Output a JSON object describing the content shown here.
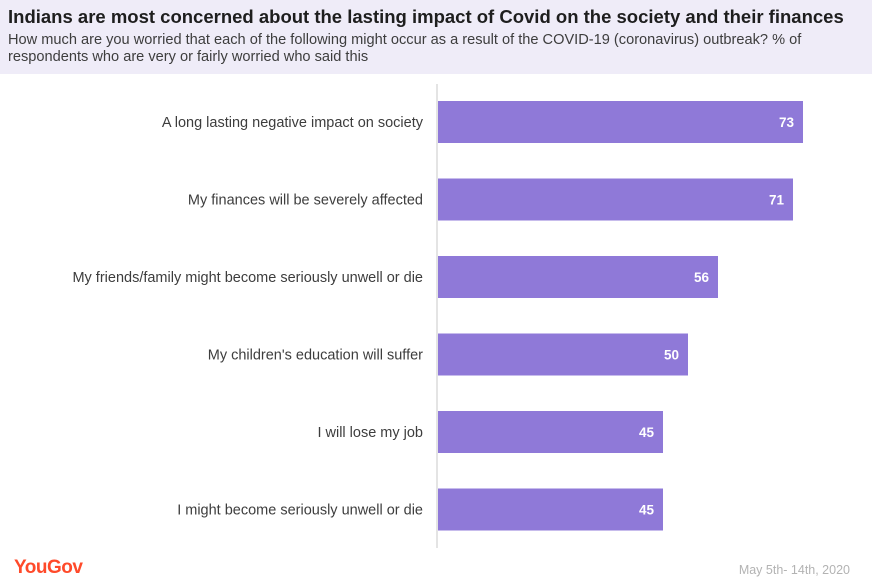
{
  "header": {
    "title": "Indians are most concerned about the lasting impact of Covid on the society and their finances",
    "subtitle": "How much are you worried that each of the following might occur as a result of the COVID-19 (coronavirus) outbreak? % of respondents who are very or fairly worried who said this"
  },
  "footer": {
    "logo": "YouGov",
    "date": "May 5th- 14th, 2020"
  },
  "colors": {
    "bar": "#8f79d8",
    "bar_label": "#ffffff",
    "category_label": "#3d3d3d",
    "axis": "#c8c8c8",
    "header_bg": "#efecf8"
  },
  "chart_data": {
    "type": "bar",
    "orientation": "horizontal",
    "title": "Indians are most concerned about the lasting impact of Covid on the society and their finances",
    "xlabel": "",
    "ylabel": "",
    "xlim": [
      0,
      80
    ],
    "grid": false,
    "categories": [
      "A long lasting negative impact on society",
      "My finances will be severely affected",
      "My friends/family might become seriously unwell or die",
      "My children's education will suffer",
      "I will lose my job",
      "I might become seriously unwell or die"
    ],
    "values": [
      73,
      71,
      56,
      50,
      45,
      45
    ]
  }
}
